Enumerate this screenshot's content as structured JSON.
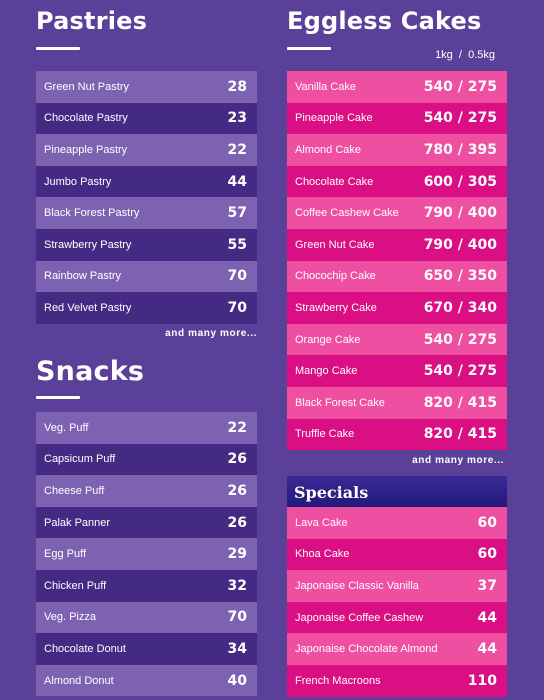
{
  "pastries": {
    "title": "Pastries",
    "items": [
      {
        "name": "Green Nut Pastry",
        "price": "28"
      },
      {
        "name": "Chocolate Pastry",
        "price": "23"
      },
      {
        "name": "Pineapple Pastry",
        "price": "22"
      },
      {
        "name": "Jumbo Pastry",
        "price": "44"
      },
      {
        "name": "Black Forest Pastry",
        "price": "57"
      },
      {
        "name": "Strawberry Pastry",
        "price": "55"
      },
      {
        "name": "Rainbow Pastry",
        "price": "70"
      },
      {
        "name": "Red Velvet Pastry",
        "price": "70"
      }
    ],
    "more": "and many more..."
  },
  "snacks": {
    "title": "Snacks",
    "items": [
      {
        "name": "Veg. Puff",
        "price": "22"
      },
      {
        "name": "Capsicum Puff",
        "price": "26"
      },
      {
        "name": "Cheese Puff",
        "price": "26"
      },
      {
        "name": "Palak Panner",
        "price": "26"
      },
      {
        "name": "Egg Puff",
        "price": "29"
      },
      {
        "name": "Chicken Puff",
        "price": "32"
      },
      {
        "name": "Veg. Pizza",
        "price": "70"
      },
      {
        "name": "Chocolate Donut",
        "price": "34"
      },
      {
        "name": "Almond Donut",
        "price": "40"
      }
    ]
  },
  "cakes": {
    "title": "Eggless Cakes",
    "units": "1kg  /  0.5kg",
    "items": [
      {
        "name": "Vanilla Cake",
        "price": "540 / 275"
      },
      {
        "name": "Pineapple Cake",
        "price": "540 / 275"
      },
      {
        "name": "Almond Cake",
        "price": "780 / 395"
      },
      {
        "name": "Chocolate Cake",
        "price": "600 / 305"
      },
      {
        "name": "Coffee Cashew Cake",
        "price": "790 / 400"
      },
      {
        "name": "Green Nut Cake",
        "price": "790 / 400"
      },
      {
        "name": "Chocochip Cake",
        "price": "650 / 350"
      },
      {
        "name": "Strawberry Cake",
        "price": "670 / 340"
      },
      {
        "name": "Orange Cake",
        "price": "540 / 275"
      },
      {
        "name": "Mango Cake",
        "price": "540 / 275"
      },
      {
        "name": "Black Forest Cake",
        "price": "820 / 415"
      },
      {
        "name": "Truffle Cake",
        "price": "820 / 415"
      }
    ],
    "more": "and many more..."
  },
  "specials": {
    "title": "Specials",
    "items": [
      {
        "name": "Lava Cake",
        "price": "60"
      },
      {
        "name": "Khoa Cake",
        "price": "60"
      },
      {
        "name": "Japonaise Classic Vanilla",
        "price": "37"
      },
      {
        "name": "Japonaise Coffee Cashew",
        "price": "44"
      },
      {
        "name": "Japonaise Chocolate Almond",
        "price": "44"
      },
      {
        "name": "French Macroons",
        "price": "110"
      }
    ]
  },
  "colors": {
    "background": "#5b4099",
    "purple_light": "#7e62b2",
    "purple_dark": "#452a84",
    "pink_light": "#ef4fa0",
    "pink_dark": "#da0f84",
    "specials_bar": "#2a1d86"
  }
}
